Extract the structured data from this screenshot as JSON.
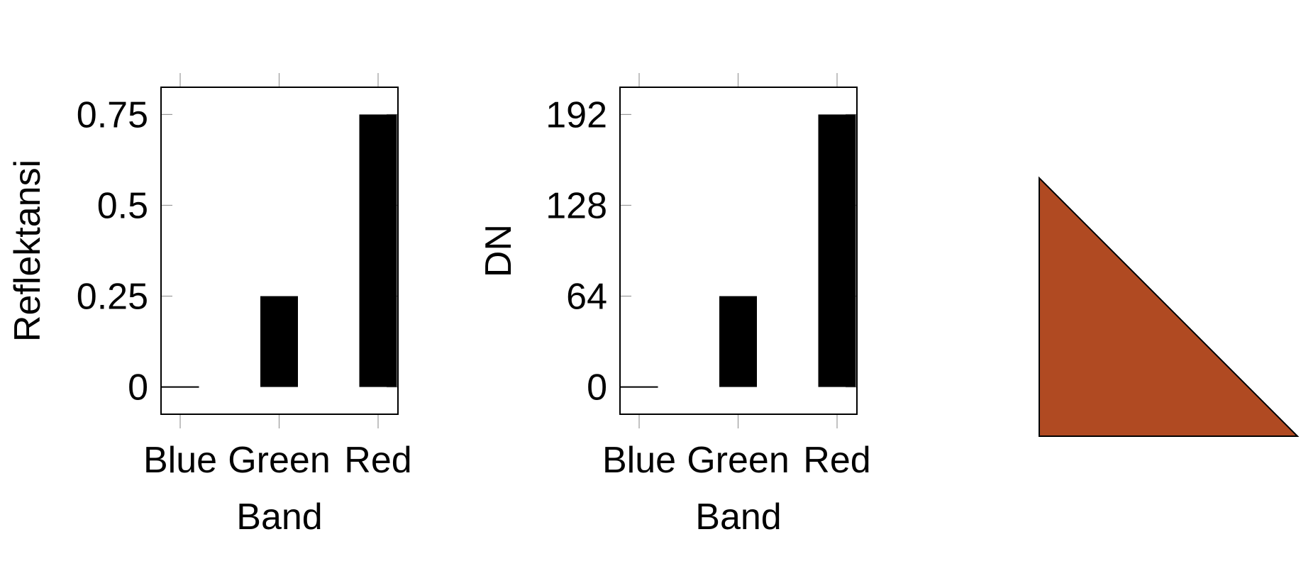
{
  "chart_data": [
    {
      "type": "bar",
      "categories": [
        "Blue",
        "Green",
        "Red"
      ],
      "values": [
        0,
        0.25,
        0.75
      ],
      "xlabel": "Band",
      "ylabel": "Reflektansi",
      "yticks": [
        "0",
        "0.25",
        "0.5",
        "0.75"
      ],
      "ytick_values": [
        0,
        0.25,
        0.5,
        0.75
      ],
      "ylim": [
        -0.075,
        0.825
      ],
      "bar_color": "#000000",
      "grid": false,
      "legend": "none"
    },
    {
      "type": "bar",
      "categories": [
        "Blue",
        "Green",
        "Red"
      ],
      "values": [
        0,
        64,
        192
      ],
      "xlabel": "Band",
      "ylabel": "DN",
      "yticks": [
        "0",
        "64",
        "128",
        "192"
      ],
      "ytick_values": [
        0,
        64,
        128,
        192
      ],
      "ylim": [
        -19.2,
        211.2
      ],
      "bar_color": "#000000",
      "grid": false,
      "legend": "none"
    }
  ],
  "swatch": {
    "shape": "right-triangle",
    "fill_color": "#B04A22",
    "stroke_color": "#000000"
  }
}
